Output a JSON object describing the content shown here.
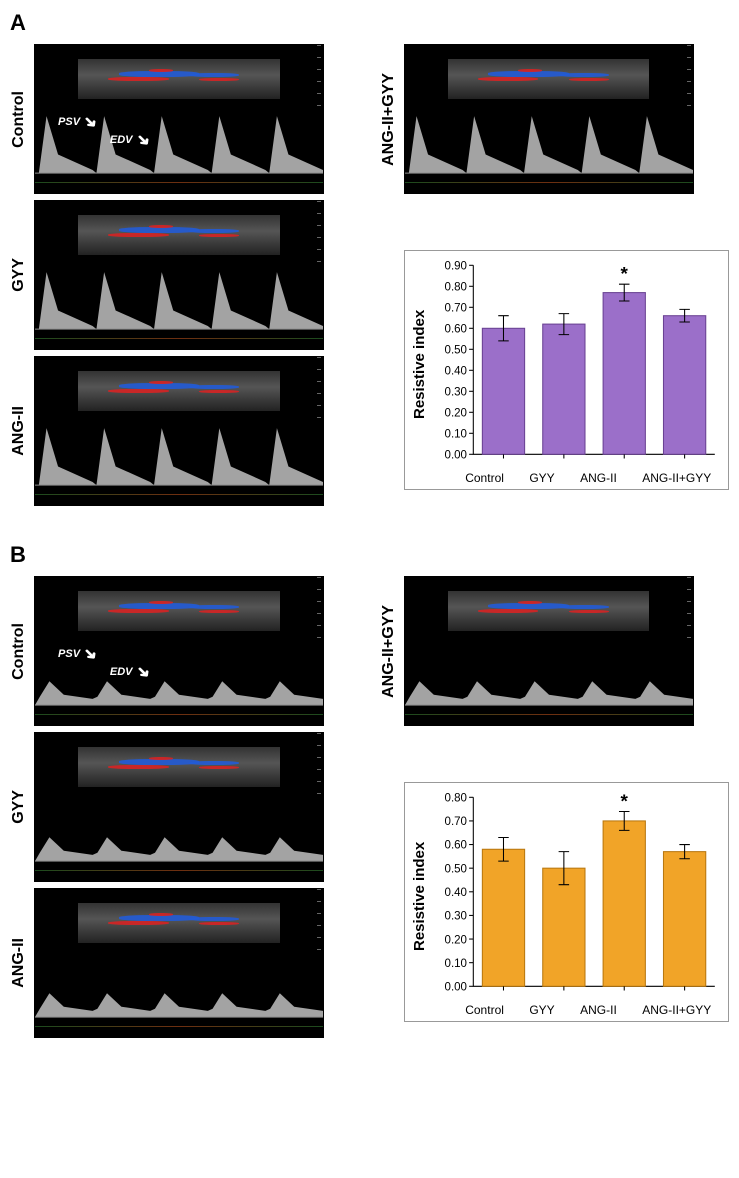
{
  "panel_A": {
    "label": "A",
    "rows": [
      "Control",
      "GYY",
      "ANG-II",
      "ANG-II+GYY"
    ],
    "annotations": {
      "psv": "PSV",
      "edv": "EDV"
    },
    "chart": {
      "type": "bar",
      "ylabel": "Resistive index",
      "ylabel_fontsize": 15,
      "categories": [
        "Control",
        "GYY",
        "ANG-II",
        "ANG-II+GYY"
      ],
      "values": [
        0.6,
        0.62,
        0.77,
        0.66
      ],
      "error": [
        0.06,
        0.05,
        0.04,
        0.03
      ],
      "bar_color": "#9b6fc9",
      "bar_edge": "#6a4293",
      "significance_index": 2,
      "significance_marker": "*",
      "ylim": [
        0.0,
        0.9
      ],
      "ytick_step": 0.1,
      "tick_decimals": 2,
      "background_color": "#ffffff",
      "bar_width": 0.7
    },
    "waveform_style": "pulsatile_tall"
  },
  "panel_B": {
    "label": "B",
    "rows": [
      "Control",
      "GYY",
      "ANG-II",
      "ANG-II+GYY"
    ],
    "annotations": {
      "psv": "PSV",
      "edv": "EDV"
    },
    "chart": {
      "type": "bar",
      "ylabel": "Resistive index",
      "ylabel_fontsize": 15,
      "categories": [
        "Control",
        "GYY",
        "ANG-II",
        "ANG-II+GYY"
      ],
      "values": [
        0.58,
        0.5,
        0.7,
        0.57
      ],
      "error": [
        0.05,
        0.07,
        0.04,
        0.03
      ],
      "bar_color": "#f1a428",
      "bar_edge": "#b97810",
      "significance_index": 2,
      "significance_marker": "*",
      "ylim": [
        0.0,
        0.8
      ],
      "ytick_step": 0.1,
      "tick_decimals": 2,
      "background_color": "#ffffff",
      "bar_width": 0.7
    },
    "waveform_style": "low_continuous"
  },
  "colors": {
    "doppler_red": "#d62424",
    "doppler_blue": "#225bd6",
    "spectral_fill": "#bfbfbf",
    "panel_bg": "#000000"
  }
}
